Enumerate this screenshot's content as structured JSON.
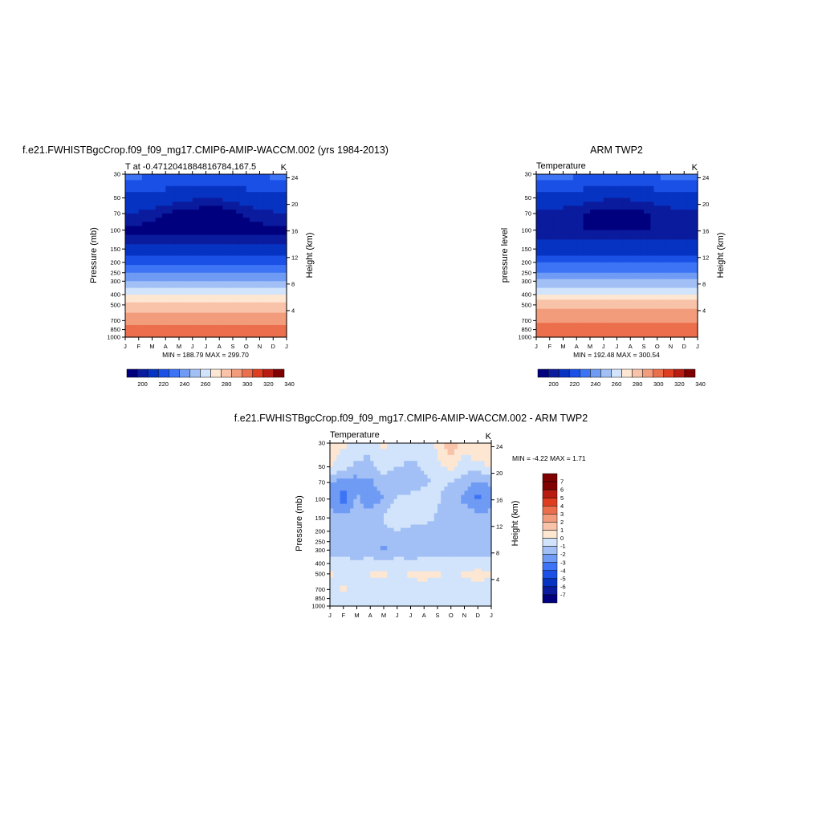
{
  "palette": [
    "#00007f",
    "#0a1b9e",
    "#0733c2",
    "#1a50e6",
    "#3c74f5",
    "#6f9bf4",
    "#a2c0f5",
    "#d2e4fb",
    "#fde6d2",
    "#f8c3a8",
    "#f39c7c",
    "#ec6f4d",
    "#de3d1f",
    "#b81c10",
    "#800000"
  ],
  "chart_data": [
    {
      "type": "heatmap",
      "title": "f.e21.FWHISTBgcCrop.f09_f09_mg17.CMIP6-AMIP-WACCM.002 (yrs 1984-2013)",
      "subtitle_left": "T at -0.4712041884816784,167.5",
      "units": "K",
      "ylabel": "Pressure (mb)",
      "ylabel_right": "Height (km)",
      "x_ticks": [
        "J",
        "F",
        "M",
        "A",
        "M",
        "J",
        "J",
        "A",
        "S",
        "O",
        "N",
        "D",
        "J"
      ],
      "y_ticks": [
        "30",
        "50",
        "70",
        "100",
        "150",
        "200",
        "250",
        "300",
        "400",
        "500",
        "700",
        "850",
        "1000"
      ],
      "y_right_ticks": [
        "24",
        "20",
        "16",
        "12",
        "8",
        "4"
      ],
      "stats": "MIN = 188.79 MAX = 299.70",
      "colorbar_labels": [
        "200",
        "220",
        "240",
        "260",
        "280",
        "300",
        "320",
        "340"
      ],
      "x": [
        1,
        2,
        3,
        4,
        5,
        6,
        7,
        8,
        9,
        10,
        11,
        12,
        13
      ],
      "levels": [
        30,
        50,
        70,
        100,
        150,
        200,
        250,
        300,
        400,
        500,
        700,
        850,
        1000
      ],
      "values": [
        [
          222,
          222,
          221,
          220,
          219,
          218,
          218,
          218,
          219,
          220,
          221,
          222,
          222
        ],
        [
          208,
          208,
          206,
          204,
          203,
          201,
          201,
          201,
          202,
          204,
          206,
          208,
          208
        ],
        [
          199,
          199,
          197,
          195,
          193,
          192,
          191,
          191,
          193,
          196,
          198,
          199,
          199
        ],
        [
          193,
          193,
          193,
          192,
          192,
          192,
          192,
          192,
          192,
          192,
          193,
          193,
          193
        ],
        [
          203,
          203,
          203,
          202,
          202,
          202,
          202,
          202,
          202,
          203,
          203,
          203,
          203
        ],
        [
          218,
          218,
          218,
          217,
          216,
          216,
          216,
          216,
          216,
          217,
          218,
          218,
          218
        ],
        [
          229,
          229,
          229,
          229,
          229,
          229,
          229,
          229,
          229,
          229,
          229,
          229,
          229
        ],
        [
          241,
          241,
          241,
          241,
          241,
          241,
          241,
          241,
          241,
          241,
          241,
          241,
          241
        ],
        [
          260,
          260,
          260,
          260,
          260,
          260,
          260,
          260,
          260,
          260,
          260,
          260,
          260
        ],
        [
          274,
          274,
          274,
          274,
          274,
          274,
          274,
          274,
          274,
          274,
          274,
          274,
          274
        ],
        [
          286,
          286,
          286,
          286,
          286,
          286,
          286,
          286,
          286,
          286,
          286,
          286,
          286
        ],
        [
          294,
          294,
          294,
          294,
          294,
          294,
          294,
          294,
          294,
          294,
          294,
          294,
          294
        ],
        [
          299,
          299,
          299,
          299,
          299,
          299,
          299,
          299,
          299,
          299,
          299,
          299,
          299
        ]
      ],
      "contour_levels": [
        195,
        200,
        210,
        220,
        230,
        240,
        250,
        260,
        270,
        280,
        290,
        300,
        310,
        320,
        330
      ]
    },
    {
      "type": "heatmap",
      "title": "ARM TWP2",
      "subtitle_left": "Temperature",
      "units": "K",
      "ylabel": "pressure level",
      "ylabel_right": "Height (km)",
      "x_ticks": [
        "J",
        "F",
        "M",
        "A",
        "M",
        "J",
        "J",
        "A",
        "S",
        "O",
        "N",
        "D",
        "J"
      ],
      "y_ticks": [
        "30",
        "50",
        "70",
        "100",
        "150",
        "200",
        "250",
        "300",
        "400",
        "500",
        "700",
        "850",
        "1000"
      ],
      "y_right_ticks": [
        "24",
        "20",
        "16",
        "12",
        "8",
        "4"
      ],
      "stats": "MIN = 192.48 MAX = 300.54",
      "colorbar_labels": [
        "200",
        "220",
        "240",
        "260",
        "280",
        "300",
        "320",
        "340"
      ],
      "x": [
        1,
        2,
        3,
        4,
        5,
        6,
        7,
        8,
        9,
        10,
        11,
        12,
        13
      ],
      "levels": [
        30,
        50,
        70,
        100,
        150,
        200,
        250,
        300,
        400,
        500,
        700,
        850,
        1000
      ],
      "values": [
        [
          223,
          223,
          223,
          222,
          221,
          220,
          220,
          220,
          221,
          222,
          223,
          223,
          223
        ],
        [
          206,
          206,
          205,
          204,
          202,
          201,
          201,
          201,
          202,
          203,
          205,
          206,
          206
        ],
        [
          198,
          198,
          197,
          196,
          194,
          193,
          192,
          192,
          194,
          196,
          197,
          198,
          198
        ],
        [
          195,
          195,
          195,
          195,
          195,
          195,
          195,
          195,
          195,
          195,
          195,
          195,
          195
        ],
        [
          204,
          204,
          204,
          204,
          204,
          204,
          204,
          204,
          204,
          204,
          204,
          204,
          204
        ],
        [
          219,
          219,
          219,
          219,
          219,
          219,
          219,
          219,
          219,
          219,
          219,
          219,
          219
        ],
        [
          230,
          230,
          230,
          230,
          230,
          230,
          230,
          230,
          230,
          230,
          230,
          230,
          230
        ],
        [
          242,
          242,
          242,
          242,
          242,
          242,
          242,
          242,
          242,
          242,
          242,
          242,
          242
        ],
        [
          261,
          261,
          261,
          261,
          261,
          261,
          261,
          261,
          261,
          261,
          261,
          261,
          261
        ],
        [
          276,
          276,
          276,
          276,
          276,
          276,
          276,
          276,
          276,
          276,
          276,
          276,
          276
        ],
        [
          287,
          287,
          287,
          287,
          288,
          288,
          288,
          288,
          287,
          287,
          287,
          287,
          287
        ],
        [
          295,
          295,
          295,
          295,
          296,
          296,
          296,
          296,
          295,
          295,
          295,
          295,
          295
        ],
        [
          300,
          300,
          300,
          300,
          300,
          300,
          300,
          300,
          300,
          300,
          300,
          300,
          300
        ]
      ],
      "contour_levels": [
        195,
        200,
        210,
        220,
        230,
        240,
        250,
        260,
        270,
        280,
        290,
        300,
        310,
        320,
        330
      ]
    },
    {
      "type": "heatmap",
      "title": "f.e21.FWHISTBgcCrop.f09_f09_mg17.CMIP6-AMIP-WACCM.002 - ARM TWP2",
      "subtitle_left": "Temperature",
      "units": "K",
      "ylabel": "Pressure (mb)",
      "ylabel_right": "Height (km)",
      "x_ticks": [
        "J",
        "F",
        "M",
        "A",
        "M",
        "J",
        "J",
        "A",
        "S",
        "O",
        "N",
        "D",
        "J"
      ],
      "y_ticks": [
        "30",
        "50",
        "70",
        "100",
        "150",
        "200",
        "250",
        "300",
        "400",
        "500",
        "700",
        "850",
        "1000"
      ],
      "y_right_ticks": [
        "24",
        "20",
        "16",
        "12",
        "8",
        "4"
      ],
      "stats": "MIN =  -4.22 MAX =   1.71",
      "colorbar_labels": [
        "7",
        "6",
        "5",
        "4",
        "3",
        "2",
        "1",
        "0",
        "-1",
        "-2",
        "-3",
        "-4",
        "-5",
        "-6",
        "-7"
      ],
      "x": [
        1,
        2,
        3,
        4,
        5,
        6,
        7,
        8,
        9,
        10,
        11,
        12,
        13
      ],
      "levels": [
        30,
        50,
        70,
        100,
        150,
        200,
        250,
        300,
        400,
        500,
        700,
        850,
        1000
      ],
      "values": [
        [
          0.4,
          0.2,
          -0.5,
          -0.6,
          0.2,
          -0.4,
          -0.5,
          -0.3,
          0.2,
          1.7,
          0.5,
          1.2,
          0.4
        ],
        [
          0.2,
          -0.5,
          -1.2,
          -1.4,
          -0.6,
          -1.0,
          -1.2,
          -0.9,
          -0.3,
          0.3,
          -0.5,
          -0.6,
          0.2
        ],
        [
          -1.8,
          -2.8,
          -2.5,
          -2.2,
          -1.4,
          -1.8,
          -1.5,
          -1.2,
          -0.8,
          -1.0,
          -1.6,
          -2.2,
          -1.8
        ],
        [
          -2.5,
          -3.4,
          -1.8,
          -2.7,
          -2.0,
          -0.9,
          -0.7,
          -0.5,
          -0.9,
          -1.5,
          -2.2,
          -3.3,
          -2.5
        ],
        [
          -1.6,
          -1.7,
          -1.6,
          -1.4,
          -0.9,
          0.2,
          -0.6,
          -0.6,
          -1.1,
          -1.3,
          -1.3,
          -1.5,
          -1.6
        ],
        [
          -1.5,
          -1.5,
          -1.5,
          -1.4,
          -1.3,
          -1.1,
          -1.3,
          -1.4,
          -1.5,
          -1.2,
          -1.3,
          -1.4,
          -1.5
        ],
        [
          -1.5,
          -1.5,
          -1.6,
          -1.5,
          -1.8,
          -1.4,
          -1.4,
          -1.5,
          -1.7,
          -1.3,
          -1.3,
          -1.4,
          -1.5
        ],
        [
          -1.6,
          -1.6,
          -1.6,
          -1.6,
          -2.3,
          -1.6,
          -1.6,
          -1.6,
          -1.6,
          -1.4,
          -1.5,
          -1.5,
          -1.6
        ],
        [
          -0.6,
          -0.6,
          -0.7,
          -0.6,
          -0.5,
          -0.6,
          -0.7,
          -0.6,
          -0.6,
          -0.5,
          -0.6,
          -0.6,
          -0.6
        ],
        [
          0.2,
          -0.6,
          -0.5,
          0.1,
          0.3,
          -0.5,
          0.2,
          0.3,
          0.2,
          -0.5,
          0.2,
          0.4,
          0.2
        ],
        [
          -0.6,
          0.3,
          -0.5,
          -0.6,
          -0.8,
          -0.6,
          -0.5,
          -0.4,
          -0.6,
          -0.5,
          -0.6,
          -0.5,
          -0.6
        ],
        [
          -0.6,
          -0.5,
          -0.6,
          -0.7,
          -1.0,
          -0.5,
          -0.6,
          -1.1,
          -0.6,
          -0.8,
          -0.6,
          -0.5,
          -0.6
        ],
        [
          -0.5,
          -0.5,
          -0.5,
          -0.5,
          -0.5,
          -0.5,
          -0.5,
          -0.5,
          -0.5,
          -0.5,
          -0.5,
          -0.5,
          -0.5
        ]
      ],
      "contour_levels": [
        -7,
        -6,
        -5,
        -4,
        -3,
        -2,
        -1,
        0,
        1,
        2,
        3,
        4,
        5,
        6,
        7
      ]
    }
  ]
}
